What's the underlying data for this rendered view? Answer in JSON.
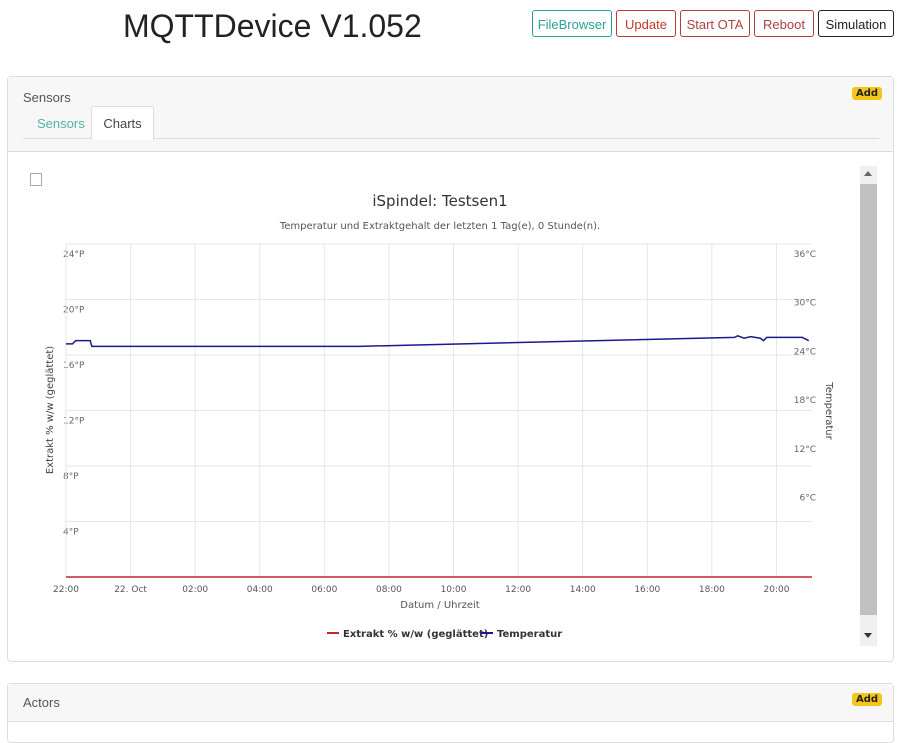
{
  "header": {
    "title": "MQTTDevice V1.052",
    "buttons": [
      "FileBrowser",
      "Update",
      "Start OTA",
      "Reboot",
      "Simulation"
    ]
  },
  "sensors": {
    "title": "Sensors",
    "add": "Add",
    "tabs": [
      "Sensors",
      "Charts"
    ]
  },
  "actors": {
    "title": "Actors",
    "add": "Add"
  },
  "chart_data": {
    "type": "line",
    "title": "iSpindel: Testsen1",
    "subtitle": "Temperatur und Extraktgehalt der letzten 1 Tag(e), 0 Stunde(n).",
    "x_label": "Datum / Uhrzeit",
    "y_label": "Extrakt % w/w (geglättet)",
    "y2_label": "Temperatur",
    "xlim": [
      0,
      23.1
    ],
    "xticks": [
      {
        "value": 0,
        "label": "22:00"
      },
      {
        "value": 2,
        "label": "22. Oct"
      },
      {
        "value": 4,
        "label": "02:00"
      },
      {
        "value": 6,
        "label": "04:00"
      },
      {
        "value": 8,
        "label": "06:00"
      },
      {
        "value": 10,
        "label": "08:00"
      },
      {
        "value": 12,
        "label": "10:00"
      },
      {
        "value": 14,
        "label": "12:00"
      },
      {
        "value": 16,
        "label": "14:00"
      },
      {
        "value": 18,
        "label": "16:00"
      },
      {
        "value": 20,
        "label": "18:00"
      },
      {
        "value": 22,
        "label": "20:00"
      }
    ],
    "ylim": [
      0,
      24
    ],
    "yticks": [
      {
        "value": 4,
        "label": "4°P"
      },
      {
        "value": 8,
        "label": "8°P"
      },
      {
        "value": 12,
        "label": "12°P"
      },
      {
        "value": 16,
        "label": "16°P"
      },
      {
        "value": 20,
        "label": "20°P"
      },
      {
        "value": 24,
        "label": "24°P"
      }
    ],
    "y2lim": [
      -5,
      36
    ],
    "y2ticks": [
      {
        "value": 6,
        "label": "6°C"
      },
      {
        "value": 12,
        "label": "12°C"
      },
      {
        "value": 18,
        "label": "18°C"
      },
      {
        "value": 24,
        "label": "24°C"
      },
      {
        "value": 30,
        "label": "30°C"
      },
      {
        "value": 36,
        "label": "36°C"
      }
    ],
    "grid": true,
    "series": [
      {
        "name": "Extrakt % w/w (geglättet)",
        "color": "#c0282d",
        "x": [
          0,
          23.1
        ],
        "values": [
          0,
          0
        ]
      },
      {
        "name": "Temperatur",
        "color": "#1a1a8c",
        "axis": "y2",
        "x": [
          0,
          0.2,
          0.3,
          0.75,
          0.8,
          9.1,
          20.7,
          20.8,
          21.0,
          21.2,
          21.5,
          21.6,
          21.7,
          22.8,
          23.0
        ],
        "values": [
          23.7,
          23.7,
          24.1,
          24.1,
          23.4,
          23.4,
          24.5,
          24.7,
          24.4,
          24.6,
          24.4,
          24.1,
          24.5,
          24.5,
          24.1
        ]
      }
    ]
  }
}
